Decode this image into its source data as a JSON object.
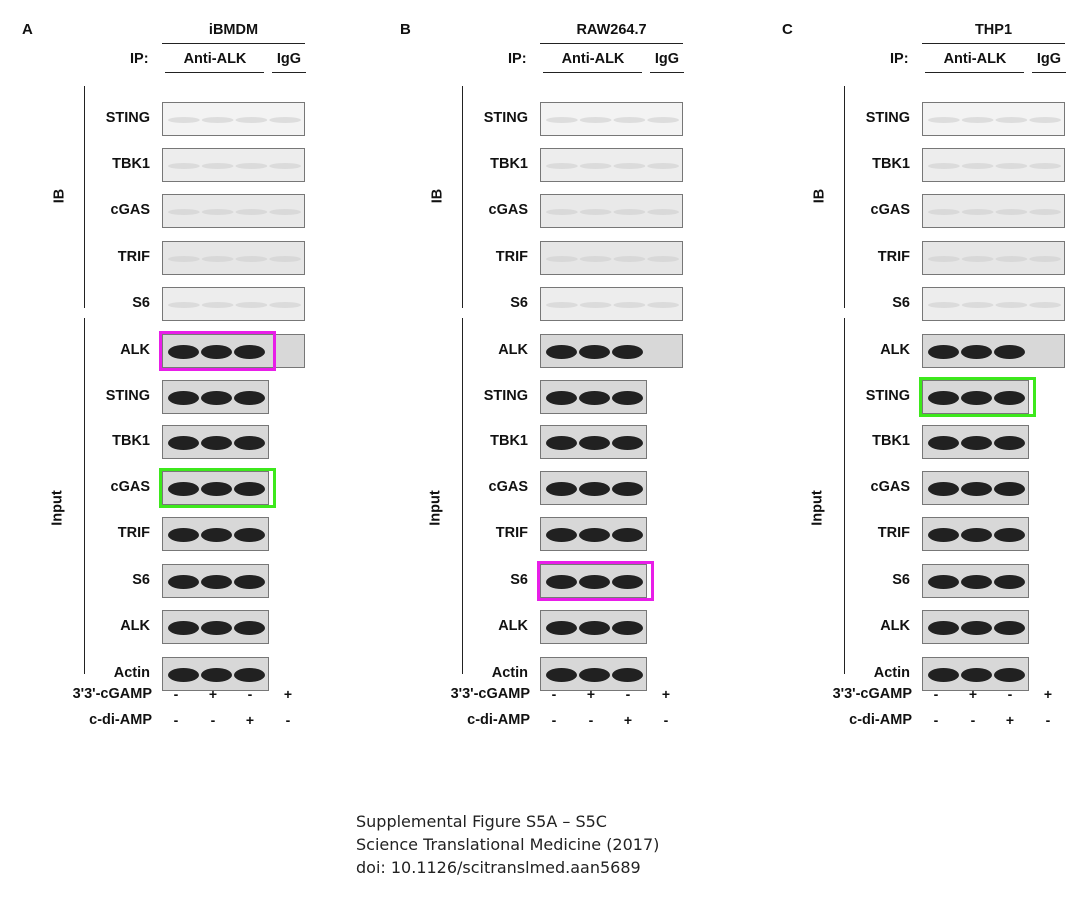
{
  "panels": [
    {
      "letter": "A",
      "cell": "iBMDM",
      "ip_label": "IP:",
      "ip_anti": "Anti-ALK",
      "ip_igg": "IgG",
      "ib_label": "IB",
      "input_label": "Input",
      "ib_rows": [
        "STING",
        "TBK1",
        "cGAS",
        "TRIF",
        "S6"
      ],
      "input_rows": [
        "ALK",
        "STING",
        "TBK1",
        "cGAS",
        "TRIF",
        "S6",
        "ALK",
        "Actin"
      ],
      "highlights": [
        {
          "row": "input",
          "index": 0,
          "color": "#e81ee8"
        },
        {
          "row": "input",
          "index": 3,
          "color": "#3de81c"
        }
      ]
    },
    {
      "letter": "B",
      "cell": "RAW264.7",
      "ip_label": "IP:",
      "ip_anti": "Anti-ALK",
      "ip_igg": "IgG",
      "ib_label": "IB",
      "input_label": "Input",
      "ib_rows": [
        "STING",
        "TBK1",
        "cGAS",
        "TRIF",
        "S6"
      ],
      "input_rows": [
        "ALK",
        "STING",
        "TBK1",
        "cGAS",
        "TRIF",
        "S6",
        "ALK",
        "Actin"
      ],
      "highlights": [
        {
          "row": "input",
          "index": 5,
          "color": "#e81ee8"
        }
      ]
    },
    {
      "letter": "C",
      "cell": "THP1",
      "ip_label": "IP:",
      "ip_anti": "Anti-ALK",
      "ip_igg": "IgG",
      "ib_label": "IB",
      "input_label": "Input",
      "ib_rows": [
        "STING",
        "TBK1",
        "cGAS",
        "TRIF",
        "S6"
      ],
      "input_rows": [
        "ALK",
        "STING",
        "TBK1",
        "cGAS",
        "TRIF",
        "S6",
        "ALK",
        "Actin"
      ],
      "highlights": [
        {
          "row": "input",
          "index": 1,
          "color": "#3de81c"
        }
      ]
    }
  ],
  "treatments": [
    {
      "label": "3'3'-cGAMP",
      "signs": [
        "-",
        "+",
        "-",
        "+"
      ]
    },
    {
      "label": "c-di-AMP",
      "signs": [
        "-",
        "-",
        "+",
        "-"
      ]
    }
  ],
  "caption": {
    "line1": "Supplemental Figure S5A – S5C",
    "line2": "Science Translational Medicine (2017)",
    "line3": "doi: 10.1126/scitranslmed.aan5689"
  }
}
